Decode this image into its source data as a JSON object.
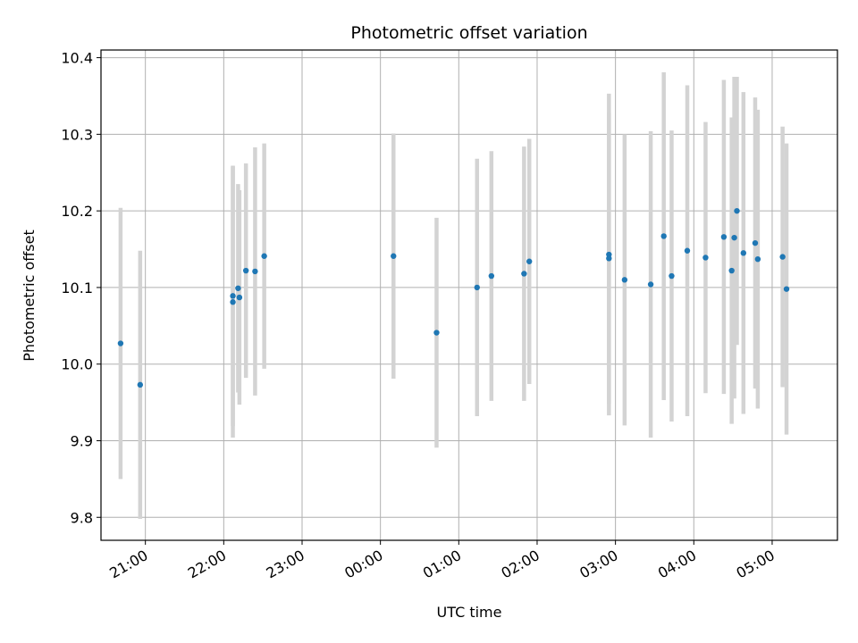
{
  "chart_data": {
    "type": "scatter",
    "title": "Photometric offset variation",
    "xlabel": "UTC time",
    "ylabel": "Photometric offset",
    "grid": true,
    "ylim": [
      9.77,
      10.41
    ],
    "xlim": [
      "20:26",
      "05:50"
    ],
    "x_ticks": [
      "21:00",
      "22:00",
      "23:00",
      "00:00",
      "01:00",
      "02:00",
      "03:00",
      "04:00",
      "05:00"
    ],
    "y_ticks": [
      "9.8",
      "9.9",
      "10.0",
      "10.1",
      "10.2",
      "10.3",
      "10.4"
    ],
    "colors": {
      "point": "#1f77b4",
      "errorbar": "#d3d3d3",
      "grid": "#b0b0b0"
    },
    "points": [
      {
        "x": "20:41",
        "y": 10.027,
        "yerr": 0.177
      },
      {
        "x": "20:56",
        "y": 9.973,
        "yerr": 0.175
      },
      {
        "x": "22:07",
        "y": 10.081,
        "yerr": 0.177
      },
      {
        "x": "22:07",
        "y": 10.089,
        "yerr": 0.17
      },
      {
        "x": "22:11",
        "y": 10.099,
        "yerr": 0.136
      },
      {
        "x": "22:12",
        "y": 10.087,
        "yerr": 0.14
      },
      {
        "x": "22:17",
        "y": 10.122,
        "yerr": 0.14
      },
      {
        "x": "22:24",
        "y": 10.121,
        "yerr": 0.162
      },
      {
        "x": "22:31",
        "y": 10.141,
        "yerr": 0.147
      },
      {
        "x": "00:10",
        "y": 10.141,
        "yerr": 0.16
      },
      {
        "x": "00:43",
        "y": 10.041,
        "yerr": 0.15
      },
      {
        "x": "01:14",
        "y": 10.1,
        "yerr": 0.168
      },
      {
        "x": "01:25",
        "y": 10.115,
        "yerr": 0.163
      },
      {
        "x": "01:50",
        "y": 10.118,
        "yerr": 0.166
      },
      {
        "x": "01:54",
        "y": 10.134,
        "yerr": 0.16
      },
      {
        "x": "02:55",
        "y": 10.143,
        "yerr": 0.21
      },
      {
        "x": "02:55",
        "y": 10.138,
        "yerr": 0.19
      },
      {
        "x": "03:07",
        "y": 10.11,
        "yerr": 0.19
      },
      {
        "x": "03:27",
        "y": 10.104,
        "yerr": 0.2
      },
      {
        "x": "03:37",
        "y": 10.167,
        "yerr": 0.214
      },
      {
        "x": "03:43",
        "y": 10.115,
        "yerr": 0.19
      },
      {
        "x": "03:55",
        "y": 10.148,
        "yerr": 0.216
      },
      {
        "x": "04:09",
        "y": 10.139,
        "yerr": 0.177
      },
      {
        "x": "04:23",
        "y": 10.166,
        "yerr": 0.205
      },
      {
        "x": "04:29",
        "y": 10.122,
        "yerr": 0.2
      },
      {
        "x": "04:31",
        "y": 10.165,
        "yerr": 0.21
      },
      {
        "x": "04:33",
        "y": 10.2,
        "yerr": 0.175
      },
      {
        "x": "04:38",
        "y": 10.145,
        "yerr": 0.21
      },
      {
        "x": "04:47",
        "y": 10.158,
        "yerr": 0.19
      },
      {
        "x": "04:49",
        "y": 10.137,
        "yerr": 0.195
      },
      {
        "x": "05:08",
        "y": 10.14,
        "yerr": 0.17
      },
      {
        "x": "05:11",
        "y": 10.098,
        "yerr": 0.19
      }
    ]
  }
}
